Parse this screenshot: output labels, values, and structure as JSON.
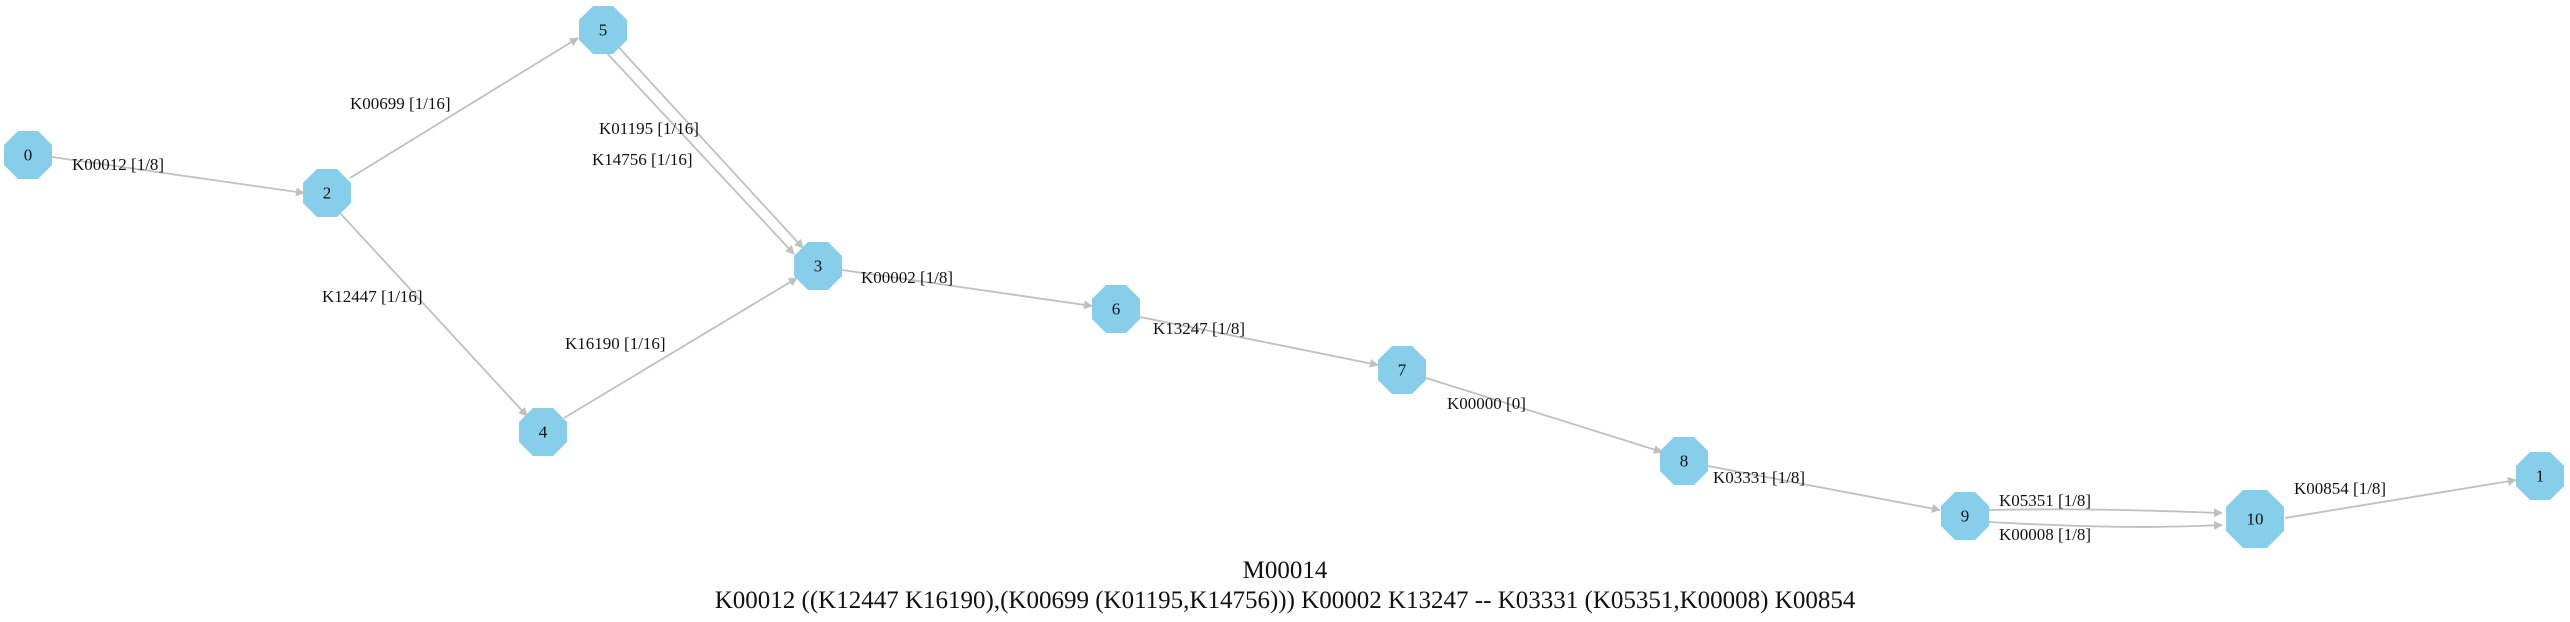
{
  "colors": {
    "node": "#87ceeb",
    "edge": "#c0c0c0",
    "text": "#111111"
  },
  "module": {
    "title": "M00014",
    "definition": "K00012 ((K12447 K16190),(K00699 (K01195,K14756))) K00002 K13247 -- K03331 (K05351,K00008) K00854"
  },
  "nodes": [
    {
      "id": "0",
      "label": "0"
    },
    {
      "id": "2",
      "label": "2"
    },
    {
      "id": "5",
      "label": "5"
    },
    {
      "id": "4",
      "label": "4"
    },
    {
      "id": "3",
      "label": "3"
    },
    {
      "id": "6",
      "label": "6"
    },
    {
      "id": "7",
      "label": "7"
    },
    {
      "id": "8",
      "label": "8"
    },
    {
      "id": "9",
      "label": "9"
    },
    {
      "id": "10",
      "label": "10"
    },
    {
      "id": "1",
      "label": "1"
    }
  ],
  "edges": [
    {
      "from": "0",
      "to": "2",
      "label": "K00012 [1/8]"
    },
    {
      "from": "2",
      "to": "5",
      "label": "K00699 [1/16]"
    },
    {
      "from": "2",
      "to": "4",
      "label": "K12447 [1/16]"
    },
    {
      "from": "5",
      "to": "3",
      "label": "K01195 [1/16]"
    },
    {
      "from": "5",
      "to": "3",
      "label": "K14756 [1/16]"
    },
    {
      "from": "4",
      "to": "3",
      "label": "K16190 [1/16]"
    },
    {
      "from": "3",
      "to": "6",
      "label": "K00002 [1/8]"
    },
    {
      "from": "6",
      "to": "7",
      "label": "K13247 [1/8]"
    },
    {
      "from": "7",
      "to": "8",
      "label": "K00000 [0]"
    },
    {
      "from": "8",
      "to": "9",
      "label": "K03331 [1/8]"
    },
    {
      "from": "9",
      "to": "10",
      "label": "K05351 [1/8]"
    },
    {
      "from": "9",
      "to": "10",
      "label": "K00008 [1/8]"
    },
    {
      "from": "10",
      "to": "1",
      "label": "K00854 [1/8]"
    }
  ]
}
